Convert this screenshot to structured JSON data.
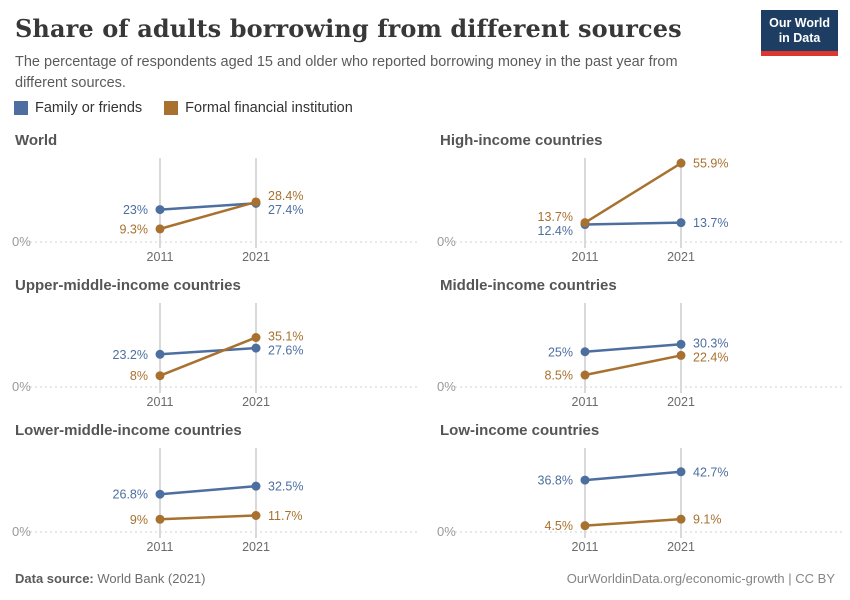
{
  "header": {
    "title": "Share of adults borrowing from different sources",
    "subtitle": "The percentage of respondents aged 15 and older who reported borrowing money in the past year from different sources.",
    "logo_line1": "Our World",
    "logo_line2": "in Data",
    "logo_bg_color": "#1d3d63",
    "logo_accent_color": "#dc3630"
  },
  "legend": {
    "items": [
      {
        "label": "Family or friends",
        "color": "#4d6fa0"
      },
      {
        "label": "Formal financial institution",
        "color": "#a8712f"
      }
    ]
  },
  "chart_data": {
    "type": "line",
    "x": [
      2011,
      2021
    ],
    "x_tick_labels": [
      "2011",
      "2021"
    ],
    "ylim": [
      0,
      60
    ],
    "zero_tick_label": "0%",
    "grid": "zero-baseline-dashed",
    "legend_position": "top-left",
    "series_names": [
      "Family or friends",
      "Formal financial institution"
    ],
    "series_colors": {
      "family": "#4d6fa0",
      "formal": "#a8712f"
    },
    "panels": [
      {
        "title": "World",
        "family": {
          "values": [
            23,
            27.4
          ],
          "labels": [
            "23%",
            "27.4%"
          ]
        },
        "formal": {
          "values": [
            9.3,
            28.4
          ],
          "labels": [
            "9.3%",
            "28.4%"
          ]
        }
      },
      {
        "title": "High-income countries",
        "family": {
          "values": [
            12.4,
            13.7
          ],
          "labels": [
            "12.4%",
            "13.7%"
          ]
        },
        "formal": {
          "values": [
            13.7,
            55.9
          ],
          "labels": [
            "13.7%",
            "55.9%"
          ]
        }
      },
      {
        "title": "Upper-middle-income countries",
        "family": {
          "values": [
            23.2,
            27.6
          ],
          "labels": [
            "23.2%",
            "27.6%"
          ]
        },
        "formal": {
          "values": [
            8,
            35.1
          ],
          "labels": [
            "8%",
            "35.1%"
          ]
        }
      },
      {
        "title": "Middle-income countries",
        "family": {
          "values": [
            25,
            30.3
          ],
          "labels": [
            "25%",
            "30.3%"
          ]
        },
        "formal": {
          "values": [
            8.5,
            22.4
          ],
          "labels": [
            "8.5%",
            "22.4%"
          ]
        }
      },
      {
        "title": "Lower-middle-income countries",
        "family": {
          "values": [
            26.8,
            32.5
          ],
          "labels": [
            "26.8%",
            "32.5%"
          ]
        },
        "formal": {
          "values": [
            9,
            11.7
          ],
          "labels": [
            "9%",
            "11.7%"
          ]
        }
      },
      {
        "title": "Low-income countries",
        "family": {
          "values": [
            36.8,
            42.7
          ],
          "labels": [
            "36.8%",
            "42.7%"
          ]
        },
        "formal": {
          "values": [
            4.5,
            9.1
          ],
          "labels": [
            "4.5%",
            "9.1%"
          ]
        }
      }
    ]
  },
  "footer": {
    "source_label": "Data source:",
    "source_value": " World Bank (2021)",
    "right_text": "OurWorldinData.org/economic-growth | CC BY"
  }
}
